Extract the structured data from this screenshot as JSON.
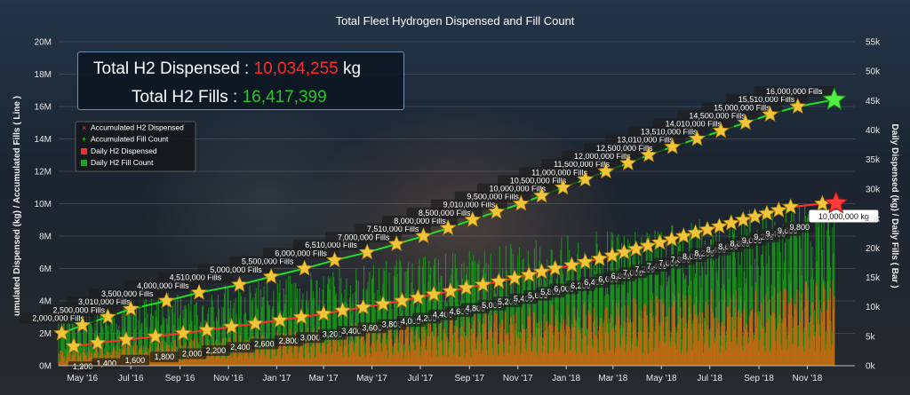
{
  "summary": {
    "dispensed_label": "Total H2 Dispensed :",
    "dispensed_value": "10,034,255",
    "dispensed_unit": "kg",
    "fills_label": "Total H2 Fills :",
    "fills_value": "16,417,399"
  },
  "colors": {
    "accumulated_dispensed": "#ff3030",
    "accumulated_fills": "#22dd22",
    "daily_dispensed": "#e06010",
    "daily_fills": "#1a9a1a",
    "marker_star": "#f2c53a"
  },
  "chart_data": {
    "type": "line",
    "title": "Total Fleet Hydrogen Dispensed and Fill Count",
    "y_left_label": "umulated Dispensed (kg) / Accumulated Fills ( Line )",
    "y_right_label": "Daily Dispensed (kg) / Daily Fills ( Bar )",
    "y_left_ticks": [
      "0M",
      "2M",
      "4M",
      "6M",
      "8M",
      "10M",
      "12M",
      "14M",
      "16M",
      "18M",
      "20M"
    ],
    "y_right_ticks": [
      "0k",
      "5k",
      "10k",
      "15k",
      "20k",
      "25k",
      "30k",
      "35k",
      "40k",
      "45k",
      "50k",
      "55k"
    ],
    "ylim_left": [
      0,
      20000000
    ],
    "ylim_right": [
      0,
      55000
    ],
    "x_ticks": [
      "May '16",
      "Jul '16",
      "Sep '16",
      "Nov '16",
      "Jan '17",
      "Mar '17",
      "May '17",
      "Jul '17",
      "Sep '17",
      "Nov '17",
      "Jan '18",
      "Mar '18",
      "May '18",
      "Jul '18",
      "Sep '18",
      "Nov '18"
    ],
    "x_range": [
      "2016-04-01",
      "2018-12-31"
    ],
    "legend": {
      "position": "top-left",
      "items": [
        "Accumulated H2 Dispensed",
        "Accumulated Fill Count",
        "Daily H2 Dispensed",
        "Daily H2 Fill Count"
      ]
    },
    "fill_milestones": [
      {
        "date": "2016-04-05",
        "value": 2000000,
        "label": "2,000,000 Fills"
      },
      {
        "date": "2016-05-01",
        "value": 2500000,
        "label": "2,500,000 Fills"
      },
      {
        "date": "2016-06-02",
        "value": 3010000,
        "label": "3,010,000 Fills"
      },
      {
        "date": "2016-07-01",
        "value": 3500000,
        "label": "3,500,000 Fills"
      },
      {
        "date": "2016-08-15",
        "value": 4000000,
        "label": "4,000,000 Fills"
      },
      {
        "date": "2016-09-25",
        "value": 4510000,
        "label": "4,510,000 Fills"
      },
      {
        "date": "2016-11-15",
        "value": 5000000,
        "label": "5,000,000 Fills"
      },
      {
        "date": "2016-12-25",
        "value": 5500000,
        "label": "5,500,000 Fills"
      },
      {
        "date": "2017-02-05",
        "value": 6000000,
        "label": "6,000,000 Fills"
      },
      {
        "date": "2017-03-15",
        "value": 6510000,
        "label": "6,510,000 Fills"
      },
      {
        "date": "2017-04-25",
        "value": 7000000,
        "label": "7,000,000 Fills"
      },
      {
        "date": "2017-06-01",
        "value": 7510000,
        "label": "7,510,000 Fills"
      },
      {
        "date": "2017-07-05",
        "value": 8000000,
        "label": "8,000,000 Fills"
      },
      {
        "date": "2017-08-05",
        "value": 8500000,
        "label": "8,500,000 Fills"
      },
      {
        "date": "2017-09-05",
        "value": 9010000,
        "label": "9,010,000 Fills"
      },
      {
        "date": "2017-10-05",
        "value": 9500000,
        "label": "9,500,000 Fills"
      },
      {
        "date": "2017-11-05",
        "value": 10000000,
        "label": "10,000,000 Fills"
      },
      {
        "date": "2017-12-01",
        "value": 10500000,
        "label": "10,500,000 Fills"
      },
      {
        "date": "2017-12-28",
        "value": 11000000,
        "label": "11,000,000 Fills"
      },
      {
        "date": "2018-01-25",
        "value": 11500000,
        "label": "11,500,000 Fills"
      },
      {
        "date": "2018-02-20",
        "value": 12000000,
        "label": "12,000,000 Fills"
      },
      {
        "date": "2018-03-20",
        "value": 12500000,
        "label": "12,500,000 Fills"
      },
      {
        "date": "2018-04-15",
        "value": 13010000,
        "label": "13,010,000 Fills"
      },
      {
        "date": "2018-05-15",
        "value": 13510000,
        "label": "13,510,000 Fills"
      },
      {
        "date": "2018-06-15",
        "value": 14010000,
        "label": "14,010,000 Fills"
      },
      {
        "date": "2018-07-15",
        "value": 14500000,
        "label": "14,500,000 Fills"
      },
      {
        "date": "2018-08-15",
        "value": 15000000,
        "label": "15,000,000 Fills"
      },
      {
        "date": "2018-09-15",
        "value": 15510000,
        "label": "15,510,000 Fills"
      },
      {
        "date": "2018-10-20",
        "value": 16000000,
        "label": "16,000,000 Fills"
      }
    ],
    "fill_current": {
      "date": "2018-12-05",
      "value": 16417399
    },
    "dispensed_milestones": [
      {
        "date": "2016-04-20",
        "value": 1200000,
        "label": "1,200,000 kg"
      },
      {
        "date": "2016-05-20",
        "value": 1400000,
        "label": "1,400,000 kg"
      },
      {
        "date": "2016-06-25",
        "value": 1600000,
        "label": "1,600,000 kg"
      },
      {
        "date": "2016-08-01",
        "value": 1800000,
        "label": "1,800,000 kg"
      },
      {
        "date": "2016-09-05",
        "value": 2000000,
        "label": "2,000,000 kg"
      },
      {
        "date": "2016-10-05",
        "value": 2200000,
        "label": "2,200,000 kg"
      },
      {
        "date": "2016-11-05",
        "value": 2400000,
        "label": "2,400,000 kg"
      },
      {
        "date": "2016-12-05",
        "value": 2600000,
        "label": "2,600,000 kg"
      },
      {
        "date": "2017-01-05",
        "value": 2800000,
        "label": "2,800,000 kg"
      },
      {
        "date": "2017-02-01",
        "value": 3000000,
        "label": "3,000,000 kg"
      },
      {
        "date": "2017-03-01",
        "value": 3200000,
        "label": "3,200,000 kg"
      },
      {
        "date": "2017-03-25",
        "value": 3400000,
        "label": "3,400,000 kg"
      },
      {
        "date": "2017-04-20",
        "value": 3600000,
        "label": "3,600,000 kg"
      },
      {
        "date": "2017-05-15",
        "value": 3800000,
        "label": "3,800,000 kg"
      },
      {
        "date": "2017-06-08",
        "value": 4000000,
        "label": "4,000,000 kg"
      },
      {
        "date": "2017-06-28",
        "value": 4200000,
        "label": "4,200,000 kg"
      },
      {
        "date": "2017-07-18",
        "value": 4400000,
        "label": "4,400,000 kg"
      },
      {
        "date": "2017-08-08",
        "value": 4600000,
        "label": "4,600,000 kg"
      },
      {
        "date": "2017-08-28",
        "value": 4800000,
        "label": "4,800,000 kg"
      },
      {
        "date": "2017-09-18",
        "value": 5000000,
        "label": "5,000,000 kg"
      },
      {
        "date": "2017-10-08",
        "value": 5200000,
        "label": "5,200,000 kg"
      },
      {
        "date": "2017-10-28",
        "value": 5400000,
        "label": "5,400,000 kg"
      },
      {
        "date": "2017-11-15",
        "value": 5600000,
        "label": "5,600,000 kg"
      },
      {
        "date": "2017-12-01",
        "value": 5800000,
        "label": "5,800,000 kg"
      },
      {
        "date": "2017-12-18",
        "value": 6000000,
        "label": "6,000,000 kg"
      },
      {
        "date": "2018-01-08",
        "value": 6200000,
        "label": "6,200,000 kg"
      },
      {
        "date": "2018-01-25",
        "value": 6400000,
        "label": "6,400,000 kg"
      },
      {
        "date": "2018-02-12",
        "value": 6600000,
        "label": "6,600,000 kg"
      },
      {
        "date": "2018-02-28",
        "value": 6800000,
        "label": "6,800,000 kg"
      },
      {
        "date": "2018-03-15",
        "value": 7000000,
        "label": "7,000,000 kg"
      },
      {
        "date": "2018-03-30",
        "value": 7200000,
        "label": "7,200,000 kg"
      },
      {
        "date": "2018-04-14",
        "value": 7400000,
        "label": "7,400,000 kg"
      },
      {
        "date": "2018-04-29",
        "value": 7600000,
        "label": "7,600,000 kg"
      },
      {
        "date": "2018-05-14",
        "value": 7800000,
        "label": "7,800,000 kg"
      },
      {
        "date": "2018-05-29",
        "value": 8000000,
        "label": "8,000,000 kg"
      },
      {
        "date": "2018-06-13",
        "value": 8200000,
        "label": "8,200,000 kg"
      },
      {
        "date": "2018-06-28",
        "value": 8400000,
        "label": "8,400,000 kg"
      },
      {
        "date": "2018-07-13",
        "value": 8600000,
        "label": "8,600,000 kg"
      },
      {
        "date": "2018-07-28",
        "value": 8800000,
        "label": "8,800,000 kg"
      },
      {
        "date": "2018-08-12",
        "value": 9000000,
        "label": "9,000,000 kg"
      },
      {
        "date": "2018-08-27",
        "value": 9200000,
        "label": "9,200,000 kg"
      },
      {
        "date": "2018-09-11",
        "value": 9400000,
        "label": "9,400,000 kg"
      },
      {
        "date": "2018-09-26",
        "value": 9600000,
        "label": "9,600,000 kg"
      },
      {
        "date": "2018-10-11",
        "value": 9800000,
        "label": "9,800,000 kg"
      },
      {
        "date": "2018-11-20",
        "value": 10000000,
        "label": "10,000,000 kg"
      }
    ],
    "dispensed_current": {
      "date": "2018-12-05",
      "value": 10034255
    }
  }
}
